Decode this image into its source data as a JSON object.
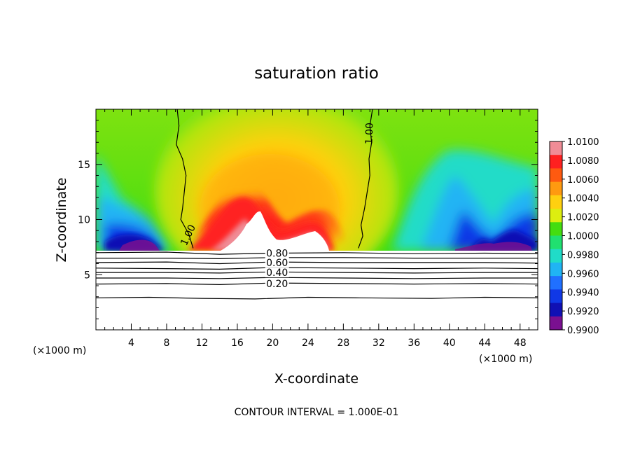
{
  "chart_data": {
    "type": "heatmap",
    "title": "saturation ratio",
    "xlabel": "X-coordinate",
    "ylabel": "Z-coordinate",
    "x_unit": "(×1000 m)",
    "xlim": [
      0,
      50
    ],
    "ylim": [
      0,
      20
    ],
    "x_ticks": [
      4,
      8,
      12,
      16,
      20,
      24,
      28,
      32,
      36,
      40,
      44,
      48
    ],
    "y_ticks": [
      5,
      10,
      15
    ],
    "grid": false,
    "colorbar": {
      "range": [
        0.99,
        1.01
      ],
      "tick_labels": [
        "1.0100",
        "1.0080",
        "1.0060",
        "1.0040",
        "1.0020",
        "1.0000",
        "0.9980",
        "0.9960",
        "0.9940",
        "0.9920",
        "0.9900"
      ],
      "colors": [
        "#f08c96",
        "#ff2020",
        "#ff5a10",
        "#ff9a10",
        "#ffd010",
        "#ddee10",
        "#44dd10",
        "#20e070",
        "#20dcc8",
        "#20b4f4",
        "#2070ff",
        "#1038e6",
        "#1010b4",
        "#7a1090"
      ]
    },
    "contour_labels": [
      "1.00",
      "1.00",
      "0.80",
      "0.60",
      "0.40",
      "0.20"
    ],
    "contour_lines": [
      {
        "label": "1.00",
        "points": [
          [
            9.2,
            20
          ],
          [
            9.4,
            18.5
          ],
          [
            9.1,
            16.8
          ],
          [
            9.8,
            15.5
          ],
          [
            10.2,
            14
          ],
          [
            10.0,
            12.5
          ],
          [
            9.8,
            11
          ],
          [
            9.6,
            10
          ],
          [
            10.5,
            8.7
          ],
          [
            11.0,
            7.4
          ]
        ]
      },
      {
        "label": "1.00",
        "points": [
          [
            31.3,
            20
          ],
          [
            31.0,
            18.5
          ],
          [
            31.2,
            17
          ],
          [
            30.9,
            15.5
          ],
          [
            31.0,
            14
          ],
          [
            30.7,
            12.5
          ],
          [
            30.4,
            11
          ],
          [
            30.0,
            9.5
          ],
          [
            30.2,
            8.5
          ],
          [
            29.7,
            7.4
          ]
        ]
      },
      {
        "label": "0.80",
        "points": [
          [
            0,
            7.0
          ],
          [
            8,
            7.05
          ],
          [
            14,
            6.85
          ],
          [
            20,
            6.95
          ],
          [
            28,
            7.0
          ],
          [
            36,
            6.9
          ],
          [
            44,
            6.95
          ],
          [
            50,
            6.9
          ]
        ]
      },
      {
        "label": "",
        "points": [
          [
            0,
            6.5
          ],
          [
            8,
            6.5
          ],
          [
            14,
            6.45
          ],
          [
            20,
            6.55
          ],
          [
            28,
            6.55
          ],
          [
            36,
            6.5
          ],
          [
            44,
            6.5
          ],
          [
            50,
            6.5
          ]
        ]
      },
      {
        "label": "0.60",
        "points": [
          [
            0,
            6.1
          ],
          [
            8,
            6.15
          ],
          [
            14,
            6.0
          ],
          [
            20,
            6.15
          ],
          [
            28,
            6.1
          ],
          [
            36,
            6.1
          ],
          [
            44,
            6.1
          ],
          [
            50,
            6.05
          ]
        ]
      },
      {
        "label": "",
        "points": [
          [
            0,
            5.6
          ],
          [
            8,
            5.55
          ],
          [
            14,
            5.5
          ],
          [
            20,
            5.65
          ],
          [
            28,
            5.6
          ],
          [
            36,
            5.55
          ],
          [
            44,
            5.6
          ],
          [
            50,
            5.55
          ]
        ]
      },
      {
        "label": "0.40",
        "points": [
          [
            0,
            5.2
          ],
          [
            8,
            5.2
          ],
          [
            14,
            5.15
          ],
          [
            20,
            5.25
          ],
          [
            28,
            5.2
          ],
          [
            36,
            5.15
          ],
          [
            44,
            5.2
          ],
          [
            50,
            5.2
          ]
        ]
      },
      {
        "label": "",
        "points": [
          [
            0,
            4.7
          ],
          [
            8,
            4.7
          ],
          [
            14,
            4.65
          ],
          [
            20,
            4.75
          ],
          [
            28,
            4.7
          ],
          [
            36,
            4.65
          ],
          [
            44,
            4.7
          ],
          [
            50,
            4.7
          ]
        ]
      },
      {
        "label": "0.20",
        "points": [
          [
            0,
            4.15
          ],
          [
            8,
            4.2
          ],
          [
            14,
            4.1
          ],
          [
            20,
            4.25
          ],
          [
            28,
            4.2
          ],
          [
            36,
            4.15
          ],
          [
            44,
            4.2
          ],
          [
            50,
            4.15
          ]
        ]
      },
      {
        "label": "",
        "points": [
          [
            0,
            2.9
          ],
          [
            6,
            2.95
          ],
          [
            12,
            2.85
          ],
          [
            18,
            2.8
          ],
          [
            24,
            2.95
          ],
          [
            30,
            2.9
          ],
          [
            38,
            2.85
          ],
          [
            44,
            2.95
          ],
          [
            50,
            2.9
          ]
        ]
      }
    ],
    "footer": "CONTOUR INTERVAL = 1.000E-01"
  }
}
